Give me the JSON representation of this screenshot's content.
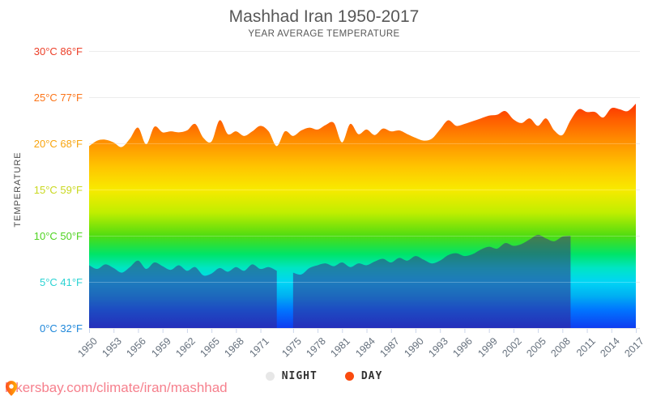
{
  "header": {
    "title": "Mashhad Iran 1950-2017",
    "subtitle": "YEAR AVERAGE TEMPERATURE"
  },
  "axes": {
    "y_title": "TEMPERATURE",
    "y_ticks": [
      {
        "label": "30°C 86°F",
        "temp": 30,
        "color": "#ec3f28"
      },
      {
        "label": "25°C 77°F",
        "temp": 25,
        "color": "#fb7418"
      },
      {
        "label": "20°C 68°F",
        "temp": 20,
        "color": "#f8a40d"
      },
      {
        "label": "15°C 59°F",
        "temp": 15,
        "color": "#c9d81f"
      },
      {
        "label": "10°C 50°F",
        "temp": 10,
        "color": "#4fd321"
      },
      {
        "label": "5°C 41°F",
        "temp": 5,
        "color": "#2bd3d3"
      },
      {
        "label": "0°C 32°F",
        "temp": 0,
        "color": "#1e87da"
      }
    ],
    "x_tick_years": [
      1950,
      1953,
      1956,
      1959,
      1962,
      1965,
      1968,
      1971,
      1975,
      1978,
      1981,
      1984,
      1987,
      1990,
      1993,
      1996,
      1999,
      2002,
      2005,
      2008,
      2011,
      2014,
      2017
    ],
    "x_label_color": "#65707d",
    "tick_mark_color": "#ccd6eb",
    "grid_color": "#e6e6e6"
  },
  "legend": {
    "items": [
      {
        "label": "NIGHT",
        "marker_color": "#e7e7e7"
      },
      {
        "label": "DAY",
        "marker_color": "#fa4b0e"
      }
    ]
  },
  "footer": {
    "url_text": "hikersbay.com/climate/iran/mashhad",
    "text_color": "#f6808d",
    "pin_icon_colors": {
      "outer_left": "#ff4d1f",
      "outer_right": "#ffb300",
      "center": "#ffffff"
    }
  },
  "chart_data": {
    "type": "area",
    "title": "Mashhad Iran 1950-2017",
    "subtitle": "YEAR AVERAGE TEMPERATURE",
    "ylabel": "TEMPERATURE",
    "ylim": [
      0,
      30
    ],
    "x_range": [
      1950,
      2017
    ],
    "grid": "horizontal-every-5C",
    "legend_position": "bottom",
    "x": [
      1950,
      1951,
      1952,
      1953,
      1954,
      1955,
      1956,
      1957,
      1958,
      1959,
      1960,
      1961,
      1962,
      1963,
      1964,
      1965,
      1966,
      1967,
      1968,
      1969,
      1970,
      1971,
      1972,
      1973,
      1974,
      1975,
      1976,
      1977,
      1978,
      1979,
      1980,
      1981,
      1982,
      1983,
      1984,
      1985,
      1986,
      1987,
      1988,
      1989,
      1990,
      1991,
      1992,
      1993,
      1994,
      1995,
      1996,
      1997,
      1998,
      1999,
      2000,
      2001,
      2002,
      2003,
      2004,
      2005,
      2006,
      2007,
      2008,
      2009,
      2010,
      2011,
      2012,
      2013,
      2014,
      2015,
      2016,
      2017
    ],
    "series": [
      {
        "name": "DAY",
        "values": [
          19.7,
          20.3,
          20.4,
          20.1,
          19.6,
          20.5,
          21.7,
          19.9,
          21.8,
          21.2,
          21.3,
          21.2,
          21.4,
          22.1,
          20.6,
          20.2,
          22.5,
          21.0,
          21.3,
          20.8,
          21.3,
          21.9,
          21.3,
          19.7,
          21.3,
          20.8,
          21.4,
          21.7,
          21.5,
          22.0,
          22.2,
          20.1,
          22.1,
          21.0,
          21.5,
          20.9,
          21.6,
          21.3,
          21.4,
          21.0,
          20.6,
          20.3,
          20.5,
          21.5,
          22.5,
          21.9,
          22.1,
          22.4,
          22.7,
          23.0,
          23.1,
          23.5,
          22.6,
          22.2,
          22.7,
          21.9,
          22.7,
          21.4,
          20.9,
          22.5,
          23.7,
          23.4,
          23.4,
          22.8,
          23.8,
          23.7,
          23.5,
          24.3
        ]
      },
      {
        "name": "NIGHT",
        "values": [
          6.8,
          6.4,
          6.9,
          6.5,
          6.0,
          6.6,
          7.3,
          6.4,
          7.1,
          6.7,
          6.3,
          6.8,
          6.2,
          6.6,
          5.7,
          5.9,
          6.5,
          6.1,
          6.6,
          6.2,
          6.9,
          6.4,
          6.6,
          6.2,
          null,
          6.0,
          5.8,
          6.5,
          6.8,
          7.0,
          6.7,
          7.1,
          6.6,
          7.0,
          6.8,
          7.2,
          7.5,
          7.1,
          7.6,
          7.3,
          7.8,
          7.4,
          7.0,
          7.3,
          7.9,
          8.1,
          7.8,
          8.0,
          8.5,
          8.8,
          8.6,
          9.2,
          8.9,
          9.1,
          9.6,
          10.1,
          9.7,
          9.4,
          9.9,
          10.0,
          null,
          null,
          null,
          null,
          null,
          null,
          null,
          null
        ]
      }
    ],
    "gradient_stops": [
      {
        "temp": 30,
        "color": "#e00000"
      },
      {
        "temp": 25,
        "color": "#fb2400"
      },
      {
        "temp": 22.5,
        "color": "#ff5f00"
      },
      {
        "temp": 20,
        "color": "#ff9400"
      },
      {
        "temp": 17.5,
        "color": "#ffc400"
      },
      {
        "temp": 15,
        "color": "#f8ea00"
      },
      {
        "temp": 12.5,
        "color": "#c0ee00"
      },
      {
        "temp": 10,
        "color": "#50dc10"
      },
      {
        "temp": 8,
        "color": "#00e468"
      },
      {
        "temp": 6.5,
        "color": "#00e5c4"
      },
      {
        "temp": 5,
        "color": "#00d5f5"
      },
      {
        "temp": 3.5,
        "color": "#00b0f2"
      },
      {
        "temp": 2,
        "color": "#0076ff"
      },
      {
        "temp": 0,
        "color": "#0f3cf0"
      }
    ],
    "night_overlay_color": "rgba(58,34,134,0.5)",
    "grid_overlay_color": "rgba(255,255,255,0.25)"
  }
}
